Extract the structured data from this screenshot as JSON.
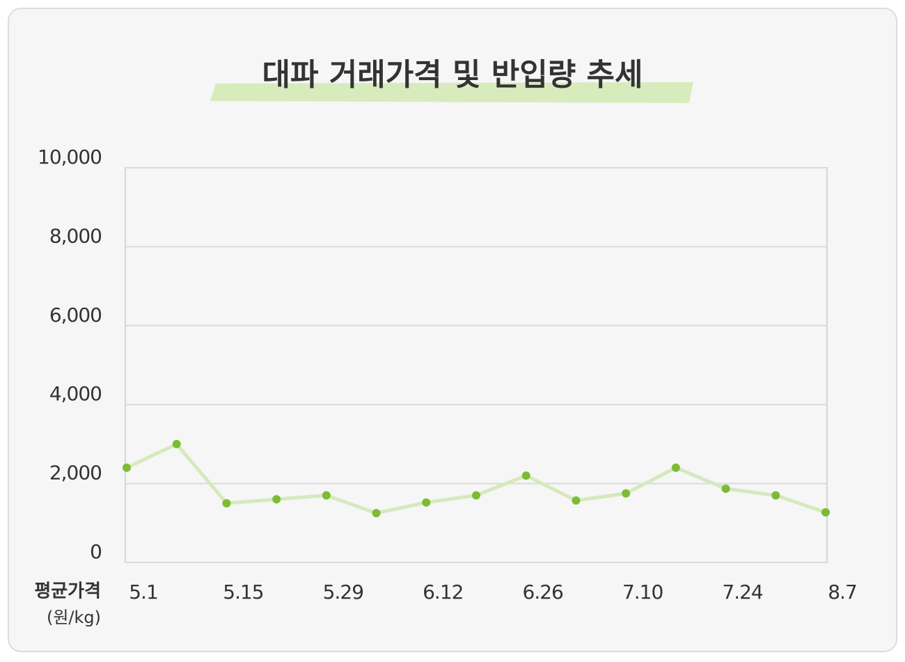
{
  "chart_data": {
    "type": "line",
    "title": "대파 거래가격 및 반입량 추세",
    "y_label": "평균가격",
    "y_unit": "(원/kg)",
    "categories": [
      "5.1",
      null,
      "5.15",
      null,
      "5.29",
      null,
      "6.12",
      null,
      "6.26",
      null,
      "7.10",
      null,
      "7.24",
      null,
      "8.7"
    ],
    "series": [
      {
        "name": "평균가격",
        "color": "#7dbb35",
        "line_color": "#d5e9bd",
        "values": [
          2400,
          3000,
          1500,
          1600,
          1700,
          1250,
          1520,
          1700,
          2200,
          1570,
          1750,
          2400,
          1870,
          1700,
          1270
        ]
      }
    ],
    "ylim": [
      0,
      10000
    ],
    "yticks": [
      0,
      {
        "value": 2000,
        "label": "2,000"
      },
      {
        "value": 4000,
        "label": "4,000"
      },
      {
        "value": 6000,
        "label": "6,000"
      },
      {
        "value": 8000,
        "label": "8,000"
      },
      {
        "value": 10000,
        "label": "10,000"
      }
    ],
    "grid": true
  }
}
